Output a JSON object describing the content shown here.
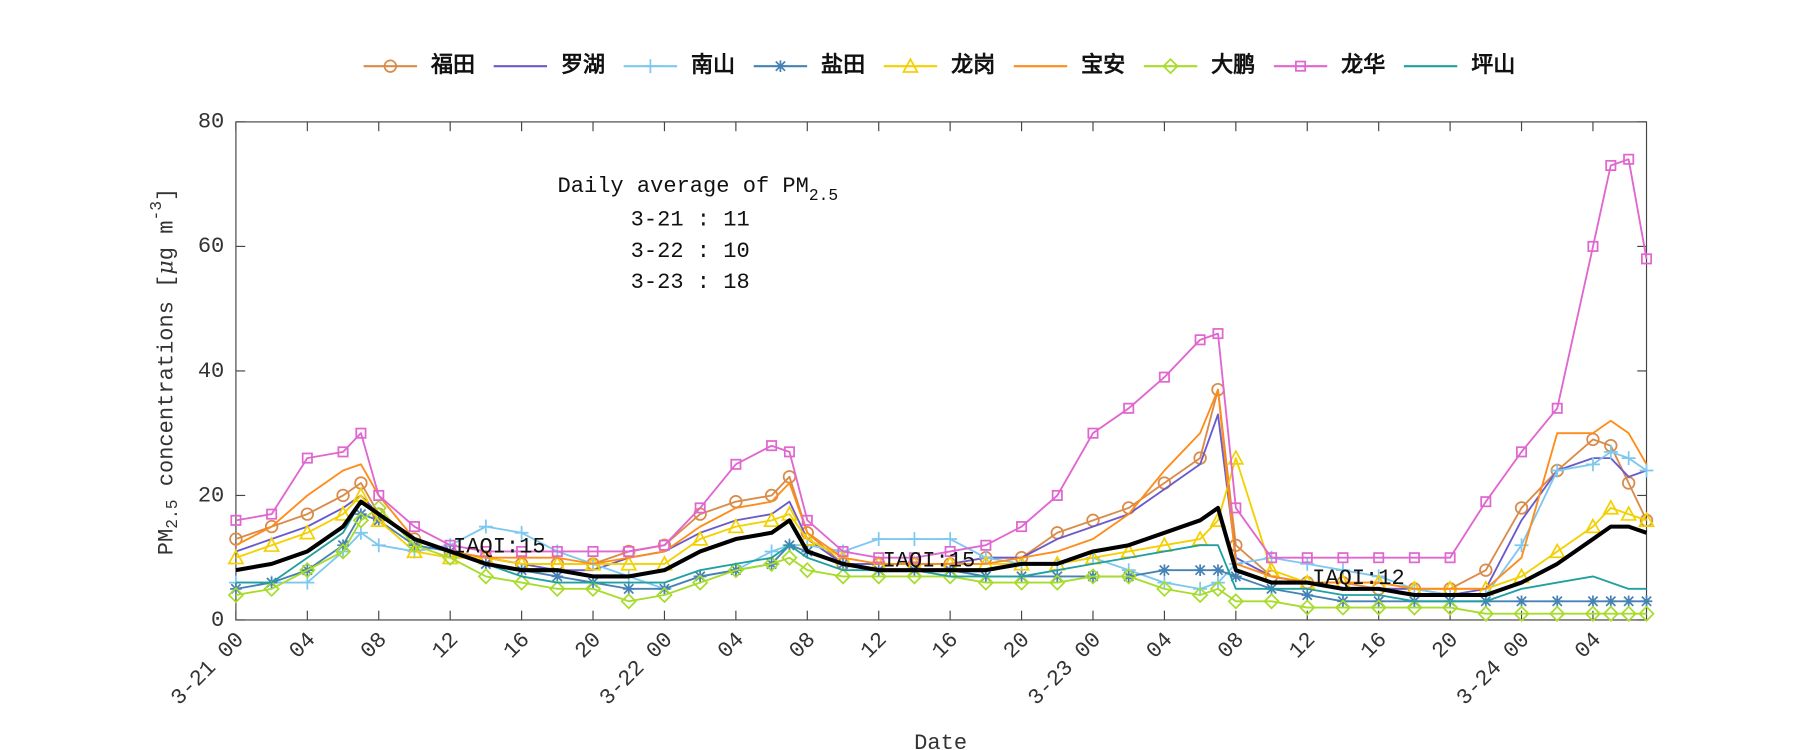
{
  "chart_data": {
    "type": "line",
    "x_label": "Date",
    "y_label": {
      "pre": "PM",
      "sub": "2.5",
      "mid": " concentrations [",
      "mu": "μ",
      "unit": "g m",
      "sup": "-3",
      "post": "]"
    },
    "xlim": [
      0,
      79
    ],
    "ylim": [
      0,
      80
    ],
    "yticks": [
      0,
      20,
      40,
      60,
      80
    ],
    "xticks": [
      {
        "value": 0,
        "label": "3-21 00"
      },
      {
        "value": 4,
        "label": "04"
      },
      {
        "value": 8,
        "label": "08"
      },
      {
        "value": 12,
        "label": "12"
      },
      {
        "value": 16,
        "label": "16"
      },
      {
        "value": 20,
        "label": "20"
      },
      {
        "value": 24,
        "label": "3-22 00"
      },
      {
        "value": 28,
        "label": "04"
      },
      {
        "value": 32,
        "label": "08"
      },
      {
        "value": 36,
        "label": "12"
      },
      {
        "value": 40,
        "label": "16"
      },
      {
        "value": 44,
        "label": "20"
      },
      {
        "value": 48,
        "label": "3-23 00"
      },
      {
        "value": 52,
        "label": "04"
      },
      {
        "value": 56,
        "label": "08"
      },
      {
        "value": 60,
        "label": "12"
      },
      {
        "value": 64,
        "label": "16"
      },
      {
        "value": 68,
        "label": "20"
      },
      {
        "value": 72,
        "label": "3-24 00"
      },
      {
        "value": 76,
        "label": "04"
      }
    ],
    "x": [
      0,
      2,
      4,
      6,
      7,
      8,
      10,
      12,
      14,
      16,
      18,
      20,
      22,
      24,
      26,
      28,
      30,
      31,
      32,
      34,
      36,
      38,
      40,
      42,
      44,
      46,
      48,
      50,
      52,
      54,
      55,
      56,
      58,
      60,
      62,
      64,
      66,
      68,
      70,
      72,
      74,
      76,
      77,
      78,
      79
    ],
    "series": [
      {
        "name": "福田",
        "color": "#d98b4a",
        "marker": "circle",
        "values": [
          13,
          15,
          17,
          20,
          22,
          17,
          13,
          11,
          10,
          9,
          9,
          9,
          11,
          12,
          17,
          19,
          20,
          23,
          14,
          9,
          9,
          9,
          9,
          10,
          10,
          14,
          16,
          18,
          22,
          26,
          37,
          12,
          7,
          6,
          6,
          5,
          5,
          5,
          8,
          18,
          24,
          29,
          28,
          22,
          16
        ]
      },
      {
        "name": "罗湖",
        "color": "#6a5acd",
        "marker": "none",
        "values": [
          11,
          13,
          15,
          18,
          20,
          17,
          13,
          11,
          10,
          9,
          8,
          8,
          10,
          11,
          14,
          16,
          17,
          19,
          13,
          9,
          9,
          9,
          9,
          10,
          10,
          13,
          15,
          17,
          21,
          25,
          33,
          10,
          7,
          6,
          5,
          5,
          5,
          4,
          5,
          16,
          24,
          26,
          26,
          23,
          24
        ]
      },
      {
        "name": "南山",
        "color": "#7ec8f0",
        "marker": "plus",
        "values": [
          6,
          6,
          6,
          11,
          14,
          12,
          11,
          12,
          15,
          14,
          11,
          9,
          7,
          5,
          7,
          8,
          11,
          12,
          12,
          11,
          13,
          13,
          13,
          10,
          9,
          9,
          10,
          8,
          6,
          5,
          6,
          9,
          10,
          9,
          8,
          7,
          5,
          4,
          4,
          12,
          24,
          25,
          27,
          26,
          24
        ]
      },
      {
        "name": "盐田",
        "color": "#4682b4",
        "marker": "star",
        "values": [
          5,
          6,
          8,
          12,
          17,
          16,
          12,
          11,
          9,
          8,
          7,
          6,
          5,
          5,
          7,
          8,
          9,
          12,
          11,
          9,
          8,
          8,
          8,
          7,
          7,
          7,
          7,
          7,
          8,
          8,
          8,
          7,
          5,
          4,
          3,
          3,
          3,
          3,
          3,
          3,
          3,
          3,
          3,
          3,
          3
        ]
      },
      {
        "name": "龙岗",
        "color": "#f5d000",
        "marker": "triangle",
        "values": [
          10,
          12,
          14,
          17,
          20,
          16,
          11,
          10,
          10,
          9,
          9,
          9,
          9,
          9,
          13,
          15,
          16,
          17,
          13,
          10,
          9,
          9,
          9,
          9,
          9,
          9,
          10,
          11,
          12,
          13,
          16,
          26,
          8,
          6,
          6,
          6,
          5,
          5,
          5,
          7,
          11,
          15,
          18,
          17,
          16
        ]
      },
      {
        "name": "宝安",
        "color": "#ff8c1a",
        "marker": "none",
        "values": [
          12,
          15,
          20,
          24,
          25,
          20,
          13,
          11,
          10,
          10,
          10,
          9,
          10,
          11,
          15,
          18,
          19,
          22,
          14,
          10,
          9,
          9,
          9,
          9,
          10,
          11,
          13,
          17,
          24,
          30,
          37,
          9,
          7,
          6,
          6,
          6,
          5,
          5,
          5,
          10,
          30,
          30,
          32,
          30,
          25
        ]
      },
      {
        "name": "大鹏",
        "color": "#a8dc2c",
        "marker": "diamond",
        "values": [
          4,
          5,
          8,
          11,
          16,
          18,
          12,
          10,
          7,
          6,
          5,
          5,
          3,
          4,
          6,
          8,
          9,
          10,
          8,
          7,
          7,
          7,
          7,
          6,
          6,
          6,
          7,
          7,
          5,
          4,
          5,
          3,
          3,
          2,
          2,
          2,
          2,
          2,
          1,
          1,
          1,
          1,
          1,
          1,
          1
        ]
      },
      {
        "name": "龙华",
        "color": "#e066d0",
        "marker": "square",
        "values": [
          16,
          17,
          26,
          27,
          30,
          20,
          15,
          12,
          11,
          11,
          11,
          11,
          11,
          12,
          18,
          25,
          28,
          27,
          16,
          11,
          10,
          10,
          11,
          12,
          15,
          20,
          30,
          34,
          39,
          45,
          46,
          18,
          10,
          10,
          10,
          10,
          10,
          10,
          19,
          27,
          34,
          60,
          73,
          74,
          58
        ]
      },
      {
        "name": "坪山",
        "color": "#20a0a0",
        "marker": "none",
        "values": [
          6,
          6,
          10,
          14,
          19,
          17,
          13,
          11,
          9,
          7,
          6,
          6,
          6,
          6,
          8,
          9,
          10,
          12,
          10,
          8,
          8,
          8,
          7,
          7,
          7,
          8,
          9,
          10,
          11,
          12,
          12,
          5,
          5,
          5,
          4,
          4,
          3,
          3,
          3,
          5,
          6,
          7,
          6,
          5,
          5
        ]
      },
      {
        "color": "#000000",
        "marker": "none",
        "linewidth": 3.5,
        "values": [
          8,
          9,
          11,
          15,
          19,
          17,
          13,
          11,
          9,
          8,
          8,
          7,
          7,
          8,
          11,
          13,
          14,
          16,
          11,
          9,
          8,
          8,
          8,
          8,
          9,
          9,
          11,
          12,
          14,
          16,
          18,
          8,
          6,
          6,
          5,
          5,
          4,
          4,
          4,
          6,
          9,
          13,
          15,
          15,
          14
        ]
      }
    ],
    "annotation_title": {
      "text": "Daily average of PM",
      "sub": "2.5"
    },
    "daily_averages": [
      {
        "date": "3-21",
        "sep": " : ",
        "value": 11
      },
      {
        "date": "3-22",
        "sep": " : ",
        "value": 10
      },
      {
        "date": "3-23",
        "sep": " : ",
        "value": 18
      }
    ],
    "iaqi_labels": [
      "IAQI:15",
      "IAQI:15",
      "IAQI:12"
    ]
  }
}
